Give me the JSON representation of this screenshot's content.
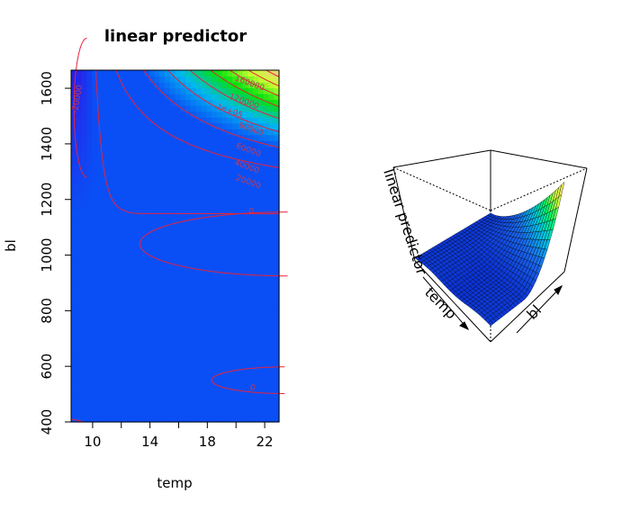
{
  "title": "linear predictor",
  "contour_plot": {
    "chart_data": {
      "type": "heatmap",
      "xlabel": "temp",
      "ylabel": "bl",
      "xlim": [
        8.5,
        23
      ],
      "ylim": [
        400,
        1665
      ],
      "x_ticks": [
        10,
        14,
        18,
        22
      ],
      "y_ticks": [
        400,
        600,
        800,
        1000,
        1200,
        1400,
        1600
      ],
      "x_tick_labels": [
        "10",
        "14",
        "18",
        "22"
      ],
      "y_tick_labels": [
        "400",
        "600",
        "800",
        "1000",
        "1200",
        "1400",
        "1600"
      ],
      "contours": [
        {
          "label": "160000",
          "value": 160000,
          "label_at": [
            20.9,
            1610
          ]
        },
        {
          "label": "120000",
          "value": 120000,
          "label_at": [
            20.5,
            1545
          ]
        },
        {
          "label": "1e+05",
          "value": 100000,
          "label_at": [
            19.5,
            1510
          ]
        },
        {
          "label": "80000",
          "value": 80000,
          "label_at": [
            21.0,
            1445
          ]
        },
        {
          "label": "60000",
          "value": 60000,
          "label_at": [
            20.8,
            1370
          ]
        },
        {
          "label": "40000",
          "value": 40000,
          "label_at": [
            20.7,
            1310
          ]
        },
        {
          "label": "20000",
          "value": 20000,
          "label_at": [
            20.8,
            1255
          ]
        },
        {
          "label": "0",
          "value": 0,
          "label_at": [
            21.0,
            1150
          ]
        },
        {
          "label": "0",
          "value": 0,
          "label_at": [
            21.1,
            515
          ]
        },
        {
          "label": "-20000",
          "value": -20000,
          "label_at": [
            9.1,
            1560
          ]
        }
      ],
      "colors": {
        "low": "#2a1ee8",
        "base": "#0a4ff5",
        "mid_low": "#00b8f0",
        "mid": "#00e00e",
        "mid_high": "#c8ff30",
        "high": "#f7c58e",
        "contour": "#e8223a",
        "contour_label": "#c63a55"
      }
    }
  },
  "perspective_plot": {
    "chart_data": {
      "type": "surface",
      "zlabel": "linear predictor",
      "xlabel": "temp",
      "ylabel": "bl",
      "colors": {
        "low": "#0a2fd8",
        "mid": "#00ff6a",
        "high": "#ffd27a"
      }
    }
  }
}
